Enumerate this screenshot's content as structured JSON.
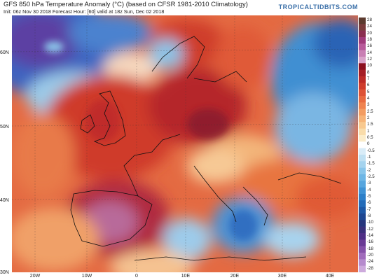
{
  "header": {
    "title": "GFS 850 hPa Temperature Anomaly (°C) (based on CFSR 1981-2010 Climatology)",
    "subtitle": "Init: 06z Nov 30 2018   Forecast Hour: [60]   valid at 18z Sun, Dec 02 2018",
    "brand": "TROPICALTIDBITS.COM"
  },
  "latitude_labels": [
    "60N",
    "50N",
    "40N",
    "30N"
  ],
  "longitude_labels": [
    "20W",
    "10W",
    "0",
    "10E",
    "20E",
    "30E",
    "40E"
  ],
  "colorbar": {
    "labels": [
      "28",
      "24",
      "20",
      "18",
      "16",
      "14",
      "12",
      "10",
      "8",
      "7",
      "6",
      "5",
      "4",
      "3",
      "2.5",
      "2",
      "1.5",
      "1",
      "0.5",
      "0",
      "-0.5",
      "-1",
      "-1.5",
      "-2",
      "-2.5",
      "-3",
      "-4",
      "-5",
      "-6",
      "-7",
      "-8",
      "-10",
      "-12",
      "-14",
      "-16",
      "-18",
      "-20",
      "-24",
      "-28"
    ],
    "colors": [
      "#5c3a2e",
      "#7a3b3b",
      "#8a2d4f",
      "#a03a7a",
      "#b85a9a",
      "#c97fb4",
      "#d9a3c9",
      "#8c0f1f",
      "#a51c24",
      "#bb2a27",
      "#cf3c2c",
      "#de5235",
      "#e86a40",
      "#ef834f",
      "#f39c61",
      "#f6b377",
      "#f8c98f",
      "#f9dcaa",
      "#fbecc9",
      "#ffffff",
      "#d9ecf7",
      "#bfe0f2",
      "#a4d3ee",
      "#88c5ea",
      "#6eb6e5",
      "#56a5de",
      "#3f92d4",
      "#2d7fc8",
      "#236bb9",
      "#1e58a6",
      "#1e4691",
      "#26357c",
      "#3a2f7a",
      "#4f2f86",
      "#6a3a95",
      "#8550a8",
      "#a06bbb",
      "#b68bcd",
      "#cdaadc"
    ]
  },
  "map_legend": {
    "units": "°C"
  }
}
